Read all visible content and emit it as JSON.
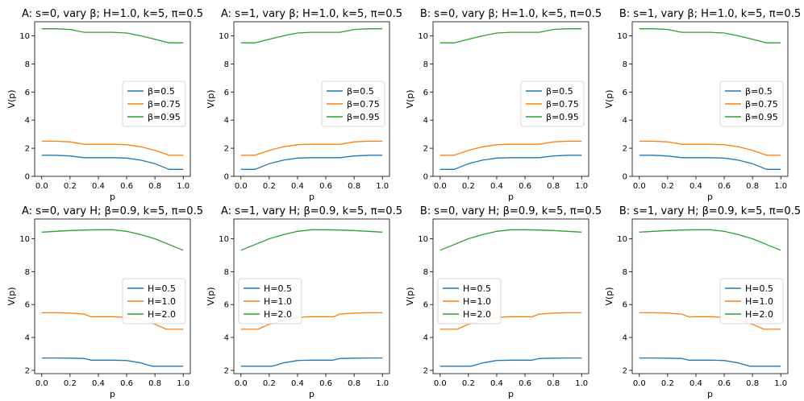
{
  "figure": {
    "rows": 2,
    "cols": 4
  },
  "chart_data": [
    {
      "type": "line",
      "title": "A: s=0, vary β; H=1.0, k=5, π=0.5",
      "xlabel": "p",
      "ylabel": "V(p)",
      "xlim": [
        -0.05,
        1.05
      ],
      "ylim": [
        0,
        11
      ],
      "xticks": [
        0.0,
        0.2,
        0.4,
        0.6,
        0.8,
        1.0
      ],
      "xtick_labels": [
        "0.0",
        "0.2",
        "0.4",
        "0.6",
        "0.8",
        "1.0"
      ],
      "yticks": [
        0,
        2,
        4,
        6,
        8,
        10
      ],
      "ytick_labels": [
        "0",
        "2",
        "4",
        "6",
        "8",
        "10"
      ],
      "legend": "center-right",
      "series": [
        {
          "name": "β=0.5",
          "color": "#1f77b4",
          "x": [
            0,
            0.1,
            0.2,
            0.3,
            0.4,
            0.5,
            0.6,
            0.7,
            0.8,
            0.9,
            1.0
          ],
          "y": [
            1.5,
            1.5,
            1.45,
            1.33,
            1.33,
            1.33,
            1.3,
            1.15,
            0.9,
            0.5,
            0.5
          ]
        },
        {
          "name": "β=0.75",
          "color": "#ff7f0e",
          "x": [
            0,
            0.1,
            0.2,
            0.3,
            0.4,
            0.5,
            0.6,
            0.7,
            0.8,
            0.9,
            1.0
          ],
          "y": [
            2.5,
            2.5,
            2.45,
            2.28,
            2.28,
            2.28,
            2.25,
            2.1,
            1.85,
            1.5,
            1.5
          ]
        },
        {
          "name": "β=0.95",
          "color": "#2ca02c",
          "x": [
            0,
            0.1,
            0.2,
            0.3,
            0.4,
            0.5,
            0.6,
            0.7,
            0.8,
            0.9,
            1.0
          ],
          "y": [
            10.5,
            10.5,
            10.45,
            10.25,
            10.25,
            10.25,
            10.2,
            10.0,
            9.75,
            9.5,
            9.5
          ]
        }
      ]
    },
    {
      "type": "line",
      "title": "A: s=1, vary β; H=1.0, k=5, π=0.5",
      "xlabel": "p",
      "ylabel": "V(p)",
      "xlim": [
        -0.05,
        1.05
      ],
      "ylim": [
        0,
        11
      ],
      "xticks": [
        0.0,
        0.2,
        0.4,
        0.6,
        0.8,
        1.0
      ],
      "xtick_labels": [
        "0.0",
        "0.2",
        "0.4",
        "0.6",
        "0.8",
        "1.0"
      ],
      "yticks": [
        0,
        2,
        4,
        6,
        8,
        10
      ],
      "ytick_labels": [
        "0",
        "2",
        "4",
        "6",
        "8",
        "10"
      ],
      "legend": "center-right",
      "series": [
        {
          "name": "β=0.5",
          "color": "#1f77b4",
          "x": [
            0,
            0.1,
            0.2,
            0.3,
            0.4,
            0.5,
            0.6,
            0.7,
            0.8,
            0.9,
            1.0
          ],
          "y": [
            0.5,
            0.5,
            0.9,
            1.15,
            1.3,
            1.33,
            1.33,
            1.33,
            1.45,
            1.5,
            1.5
          ]
        },
        {
          "name": "β=0.75",
          "color": "#ff7f0e",
          "x": [
            0,
            0.1,
            0.2,
            0.3,
            0.4,
            0.5,
            0.6,
            0.7,
            0.8,
            0.9,
            1.0
          ],
          "y": [
            1.5,
            1.5,
            1.85,
            2.1,
            2.25,
            2.28,
            2.28,
            2.28,
            2.45,
            2.5,
            2.5
          ]
        },
        {
          "name": "β=0.95",
          "color": "#2ca02c",
          "x": [
            0,
            0.1,
            0.2,
            0.3,
            0.4,
            0.5,
            0.6,
            0.7,
            0.8,
            0.9,
            1.0
          ],
          "y": [
            9.5,
            9.5,
            9.75,
            10.0,
            10.2,
            10.25,
            10.25,
            10.25,
            10.45,
            10.5,
            10.5
          ]
        }
      ]
    },
    {
      "type": "line",
      "title": "B: s=0, vary β; H=1.0, k=5, π=0.5",
      "xlabel": "p",
      "ylabel": "V(p)",
      "xlim": [
        -0.05,
        1.05
      ],
      "ylim": [
        0,
        11
      ],
      "xticks": [
        0.0,
        0.2,
        0.4,
        0.6,
        0.8,
        1.0
      ],
      "xtick_labels": [
        "0.0",
        "0.2",
        "0.4",
        "0.6",
        "0.8",
        "1.0"
      ],
      "yticks": [
        0,
        2,
        4,
        6,
        8,
        10
      ],
      "ytick_labels": [
        "0",
        "2",
        "4",
        "6",
        "8",
        "10"
      ],
      "legend": "center-right",
      "series": [
        {
          "name": "β=0.5",
          "color": "#1f77b4",
          "x": [
            0,
            0.1,
            0.2,
            0.3,
            0.4,
            0.5,
            0.6,
            0.7,
            0.8,
            0.9,
            1.0
          ],
          "y": [
            0.5,
            0.5,
            0.9,
            1.15,
            1.3,
            1.33,
            1.33,
            1.33,
            1.45,
            1.5,
            1.5
          ]
        },
        {
          "name": "β=0.75",
          "color": "#ff7f0e",
          "x": [
            0,
            0.1,
            0.2,
            0.3,
            0.4,
            0.5,
            0.6,
            0.7,
            0.8,
            0.9,
            1.0
          ],
          "y": [
            1.5,
            1.5,
            1.85,
            2.1,
            2.25,
            2.28,
            2.28,
            2.28,
            2.45,
            2.5,
            2.5
          ]
        },
        {
          "name": "β=0.95",
          "color": "#2ca02c",
          "x": [
            0,
            0.1,
            0.2,
            0.3,
            0.4,
            0.5,
            0.6,
            0.7,
            0.8,
            0.9,
            1.0
          ],
          "y": [
            9.5,
            9.5,
            9.75,
            10.0,
            10.2,
            10.25,
            10.25,
            10.25,
            10.45,
            10.5,
            10.5
          ]
        }
      ]
    },
    {
      "type": "line",
      "title": "B: s=1, vary β; H=1.0, k=5, π=0.5",
      "xlabel": "p",
      "ylabel": "V(p)",
      "xlim": [
        -0.05,
        1.05
      ],
      "ylim": [
        0,
        11
      ],
      "xticks": [
        0.0,
        0.2,
        0.4,
        0.6,
        0.8,
        1.0
      ],
      "xtick_labels": [
        "0.0",
        "0.2",
        "0.4",
        "0.6",
        "0.8",
        "1.0"
      ],
      "yticks": [
        0,
        2,
        4,
        6,
        8,
        10
      ],
      "ytick_labels": [
        "0",
        "2",
        "4",
        "6",
        "8",
        "10"
      ],
      "legend": "center-right",
      "series": [
        {
          "name": "β=0.5",
          "color": "#1f77b4",
          "x": [
            0,
            0.1,
            0.2,
            0.3,
            0.4,
            0.5,
            0.6,
            0.7,
            0.8,
            0.9,
            1.0
          ],
          "y": [
            1.5,
            1.5,
            1.45,
            1.33,
            1.33,
            1.33,
            1.3,
            1.15,
            0.9,
            0.5,
            0.5
          ]
        },
        {
          "name": "β=0.75",
          "color": "#ff7f0e",
          "x": [
            0,
            0.1,
            0.2,
            0.3,
            0.4,
            0.5,
            0.6,
            0.7,
            0.8,
            0.9,
            1.0
          ],
          "y": [
            2.5,
            2.5,
            2.45,
            2.28,
            2.28,
            2.28,
            2.25,
            2.1,
            1.85,
            1.5,
            1.5
          ]
        },
        {
          "name": "β=0.95",
          "color": "#2ca02c",
          "x": [
            0,
            0.1,
            0.2,
            0.3,
            0.4,
            0.5,
            0.6,
            0.7,
            0.8,
            0.9,
            1.0
          ],
          "y": [
            10.5,
            10.5,
            10.45,
            10.25,
            10.25,
            10.25,
            10.2,
            10.0,
            9.75,
            9.5,
            9.5
          ]
        }
      ]
    },
    {
      "type": "line",
      "title": "A: s=0, vary H; β=0.9, k=5, π=0.5",
      "xlabel": "p",
      "ylabel": "V(p)",
      "xlim": [
        -0.05,
        1.05
      ],
      "ylim": [
        1.8,
        11.2
      ],
      "xticks": [
        0.0,
        0.2,
        0.4,
        0.6,
        0.8,
        1.0
      ],
      "xtick_labels": [
        "0.0",
        "0.2",
        "0.4",
        "0.6",
        "0.8",
        "1.0"
      ],
      "yticks": [
        2,
        4,
        6,
        8,
        10
      ],
      "ytick_labels": [
        "2",
        "4",
        "6",
        "8",
        "10"
      ],
      "legend": "center-right",
      "series": [
        {
          "name": "H=0.5",
          "color": "#1f77b4",
          "x": [
            0,
            0.1,
            0.2,
            0.3,
            0.35,
            0.4,
            0.5,
            0.6,
            0.7,
            0.78,
            0.9,
            1.0
          ],
          "y": [
            2.75,
            2.75,
            2.74,
            2.72,
            2.62,
            2.62,
            2.62,
            2.6,
            2.45,
            2.25,
            2.25,
            2.25
          ]
        },
        {
          "name": "H=1.0",
          "color": "#ff7f0e",
          "x": [
            0,
            0.1,
            0.2,
            0.3,
            0.35,
            0.4,
            0.5,
            0.6,
            0.7,
            0.8,
            0.88,
            1.0
          ],
          "y": [
            5.5,
            5.5,
            5.48,
            5.42,
            5.25,
            5.26,
            5.26,
            5.22,
            5.05,
            4.8,
            4.5,
            4.5
          ]
        },
        {
          "name": "H=2.0",
          "color": "#2ca02c",
          "x": [
            0,
            0.1,
            0.2,
            0.3,
            0.4,
            0.5,
            0.6,
            0.7,
            0.8,
            0.9,
            1.0
          ],
          "y": [
            10.4,
            10.45,
            10.5,
            10.53,
            10.55,
            10.55,
            10.45,
            10.25,
            10.0,
            9.65,
            9.3
          ]
        }
      ]
    },
    {
      "type": "line",
      "title": "A: s=1, vary H; β=0.9, k=5, π=0.5",
      "xlabel": "p",
      "ylabel": "V(p)",
      "xlim": [
        -0.05,
        1.05
      ],
      "ylim": [
        1.8,
        11.2
      ],
      "xticks": [
        0.0,
        0.2,
        0.4,
        0.6,
        0.8,
        1.0
      ],
      "xtick_labels": [
        "0.0",
        "0.2",
        "0.4",
        "0.6",
        "0.8",
        "1.0"
      ],
      "yticks": [
        2,
        4,
        6,
        8,
        10
      ],
      "ytick_labels": [
        "2",
        "4",
        "6",
        "8",
        "10"
      ],
      "legend": "center-left",
      "series": [
        {
          "name": "H=0.5",
          "color": "#1f77b4",
          "x": [
            0,
            0.1,
            0.22,
            0.3,
            0.4,
            0.5,
            0.6,
            0.65,
            0.7,
            0.8,
            0.9,
            1.0
          ],
          "y": [
            2.25,
            2.25,
            2.25,
            2.45,
            2.6,
            2.62,
            2.62,
            2.62,
            2.72,
            2.74,
            2.75,
            2.75
          ]
        },
        {
          "name": "H=1.0",
          "color": "#ff7f0e",
          "x": [
            0,
            0.12,
            0.2,
            0.3,
            0.4,
            0.5,
            0.6,
            0.65,
            0.7,
            0.8,
            0.9,
            1.0
          ],
          "y": [
            4.5,
            4.5,
            4.8,
            5.05,
            5.22,
            5.26,
            5.26,
            5.25,
            5.42,
            5.48,
            5.5,
            5.5
          ]
        },
        {
          "name": "H=2.0",
          "color": "#2ca02c",
          "x": [
            0,
            0.1,
            0.2,
            0.3,
            0.4,
            0.5,
            0.6,
            0.7,
            0.8,
            0.9,
            1.0
          ],
          "y": [
            9.3,
            9.65,
            10.0,
            10.25,
            10.45,
            10.55,
            10.55,
            10.53,
            10.5,
            10.45,
            10.4
          ]
        }
      ]
    },
    {
      "type": "line",
      "title": "B: s=0, vary H; β=0.9, k=5, π=0.5",
      "xlabel": "p",
      "ylabel": "V(p)",
      "xlim": [
        -0.05,
        1.05
      ],
      "ylim": [
        1.8,
        11.2
      ],
      "xticks": [
        0.0,
        0.2,
        0.4,
        0.6,
        0.8,
        1.0
      ],
      "xtick_labels": [
        "0.0",
        "0.2",
        "0.4",
        "0.6",
        "0.8",
        "1.0"
      ],
      "yticks": [
        2,
        4,
        6,
        8,
        10
      ],
      "ytick_labels": [
        "2",
        "4",
        "6",
        "8",
        "10"
      ],
      "legend": "center-left",
      "series": [
        {
          "name": "H=0.5",
          "color": "#1f77b4",
          "x": [
            0,
            0.1,
            0.22,
            0.3,
            0.4,
            0.5,
            0.6,
            0.65,
            0.7,
            0.8,
            0.9,
            1.0
          ],
          "y": [
            2.25,
            2.25,
            2.25,
            2.45,
            2.6,
            2.62,
            2.62,
            2.62,
            2.72,
            2.74,
            2.75,
            2.75
          ]
        },
        {
          "name": "H=1.0",
          "color": "#ff7f0e",
          "x": [
            0,
            0.12,
            0.2,
            0.3,
            0.4,
            0.5,
            0.6,
            0.65,
            0.7,
            0.8,
            0.9,
            1.0
          ],
          "y": [
            4.5,
            4.5,
            4.8,
            5.05,
            5.22,
            5.26,
            5.26,
            5.25,
            5.42,
            5.48,
            5.5,
            5.5
          ]
        },
        {
          "name": "H=2.0",
          "color": "#2ca02c",
          "x": [
            0,
            0.1,
            0.2,
            0.3,
            0.4,
            0.5,
            0.6,
            0.7,
            0.8,
            0.9,
            1.0
          ],
          "y": [
            9.3,
            9.65,
            10.0,
            10.25,
            10.45,
            10.55,
            10.55,
            10.53,
            10.5,
            10.45,
            10.4
          ]
        }
      ]
    },
    {
      "type": "line",
      "title": "B: s=1, vary H; β=0.9, k=5, π=0.5",
      "xlabel": "p",
      "ylabel": "V(p)",
      "xlim": [
        -0.05,
        1.05
      ],
      "ylim": [
        1.8,
        11.2
      ],
      "xticks": [
        0.0,
        0.2,
        0.4,
        0.6,
        0.8,
        1.0
      ],
      "xtick_labels": [
        "0.0",
        "0.2",
        "0.4",
        "0.6",
        "0.8",
        "1.0"
      ],
      "yticks": [
        2,
        4,
        6,
        8,
        10
      ],
      "ytick_labels": [
        "2",
        "4",
        "6",
        "8",
        "10"
      ],
      "legend": "center-right",
      "series": [
        {
          "name": "H=0.5",
          "color": "#1f77b4",
          "x": [
            0,
            0.1,
            0.2,
            0.3,
            0.35,
            0.4,
            0.5,
            0.6,
            0.7,
            0.78,
            0.9,
            1.0
          ],
          "y": [
            2.75,
            2.75,
            2.74,
            2.72,
            2.62,
            2.62,
            2.62,
            2.6,
            2.45,
            2.25,
            2.25,
            2.25
          ]
        },
        {
          "name": "H=1.0",
          "color": "#ff7f0e",
          "x": [
            0,
            0.1,
            0.2,
            0.3,
            0.35,
            0.4,
            0.5,
            0.6,
            0.7,
            0.8,
            0.88,
            1.0
          ],
          "y": [
            5.5,
            5.5,
            5.48,
            5.42,
            5.25,
            5.26,
            5.26,
            5.22,
            5.05,
            4.8,
            4.5,
            4.5
          ]
        },
        {
          "name": "H=2.0",
          "color": "#2ca02c",
          "x": [
            0,
            0.1,
            0.2,
            0.3,
            0.4,
            0.5,
            0.6,
            0.7,
            0.8,
            0.9,
            1.0
          ],
          "y": [
            10.4,
            10.45,
            10.5,
            10.53,
            10.55,
            10.55,
            10.45,
            10.25,
            10.0,
            9.65,
            9.3
          ]
        }
      ]
    }
  ]
}
